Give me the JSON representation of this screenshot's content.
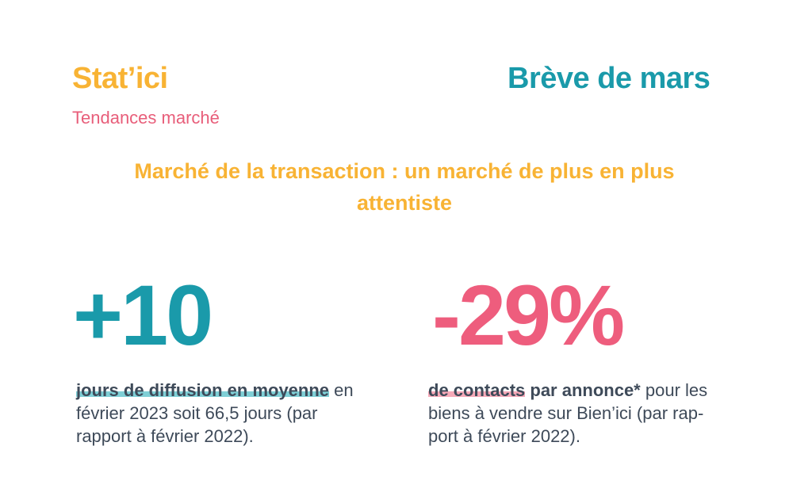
{
  "header": {
    "brand": "Stat’ici",
    "tagline": "Tendances marché",
    "issue": "Brève de mars"
  },
  "headline": {
    "line1": "Marché de la transaction : un marché de plus en plus",
    "line2": "attentiste"
  },
  "stats": [
    {
      "value": "+10",
      "highlight": "jours de diffusion en moyenne",
      "rest_line1": " en",
      "line2": "février 2023 soit 66,5 jours (par",
      "line3": "rapport à février 2022).",
      "color": "#1a9aaa"
    },
    {
      "value": "-29%",
      "highlight": "de contacts",
      "bold": " par annonce*",
      "rest_line1": " pour les",
      "line2": "biens à vendre sur Bien’ici  (par rap-",
      "line3": "port à février 2022).",
      "color": "#ee5d7d"
    }
  ]
}
